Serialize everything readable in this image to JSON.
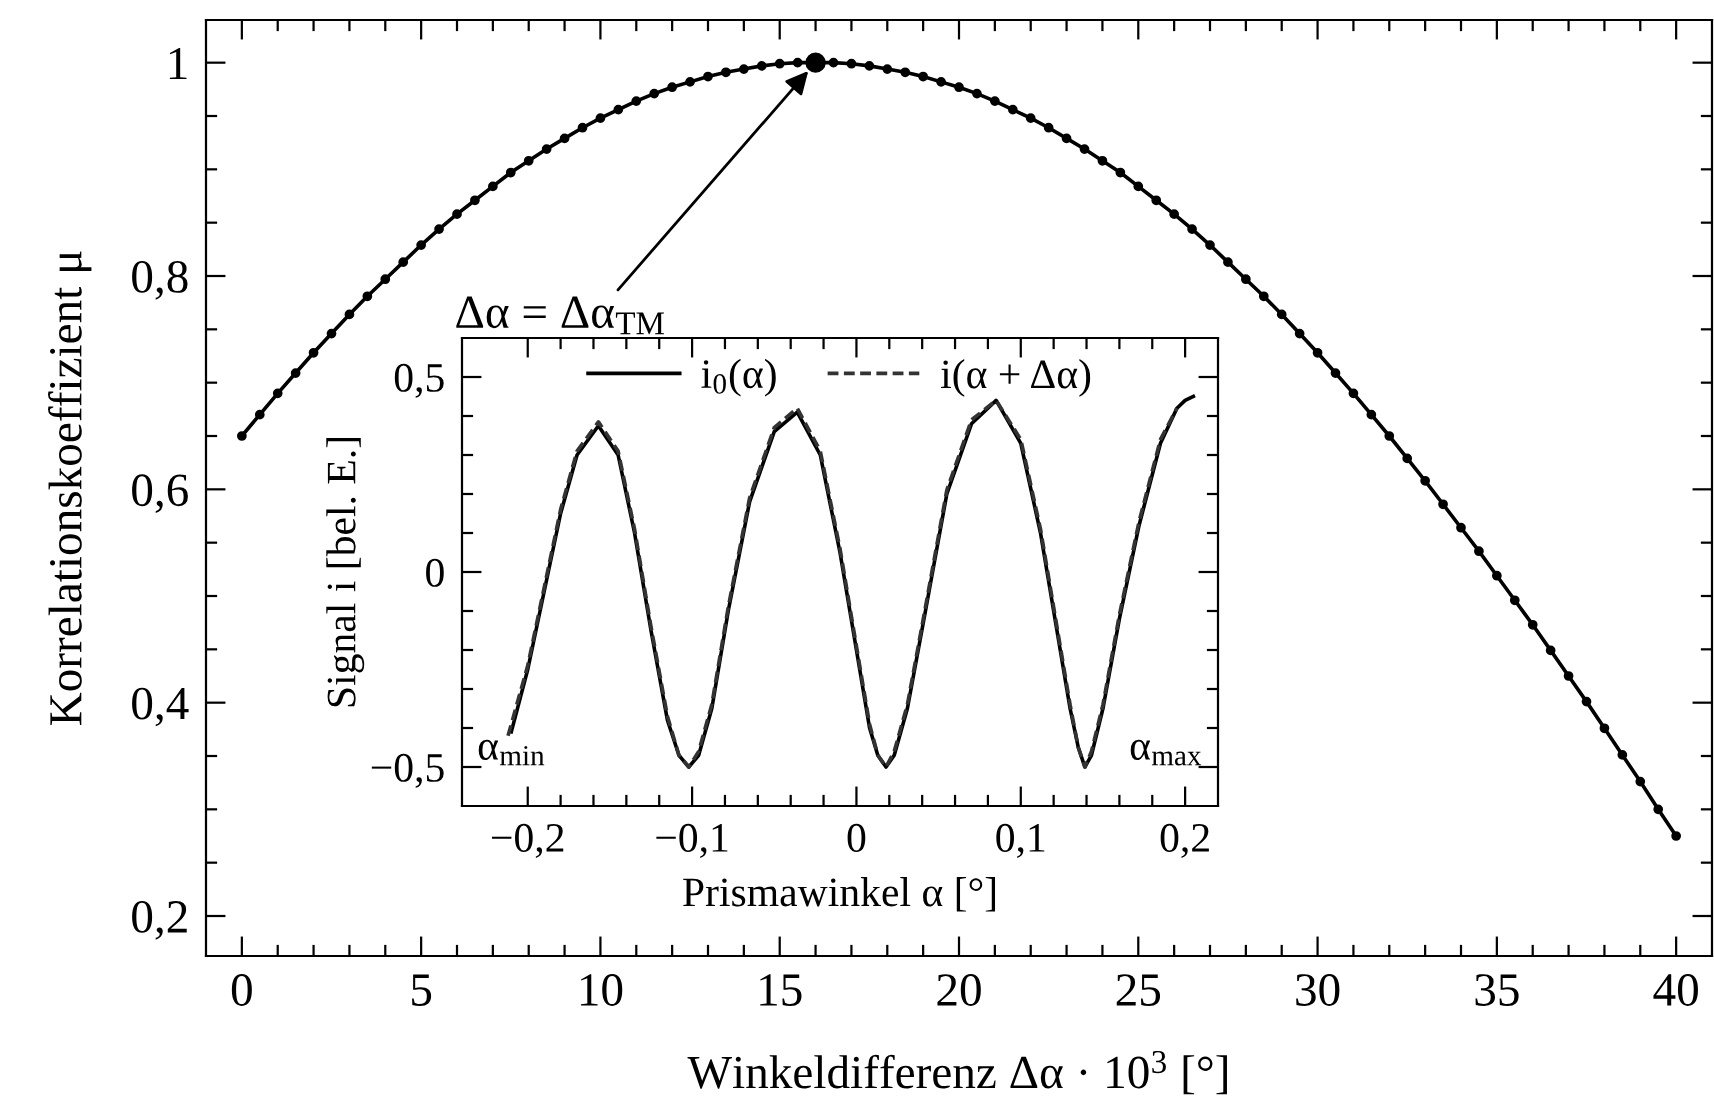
{
  "chart_data": [
    {
      "type": "line",
      "xlabel": "Winkeldifferenz Δα · 10$^{3}$ [°]",
      "ylabel": "Korrelationskoeffizient μ",
      "x": [
        0,
        0.5,
        1,
        1.5,
        2,
        2.5,
        3,
        3.5,
        4,
        4.5,
        5,
        5.5,
        6,
        6.5,
        7,
        7.5,
        8,
        8.5,
        9,
        9.5,
        10,
        10.5,
        11,
        11.5,
        12,
        12.5,
        13,
        13.5,
        14,
        14.5,
        15,
        15.5,
        16,
        16.5,
        17,
        17.5,
        18,
        18.5,
        19,
        19.5,
        20,
        20.5,
        21,
        21.5,
        22,
        22.5,
        23,
        23.5,
        24,
        24.5,
        25,
        25.5,
        26,
        26.5,
        27,
        27.5,
        28,
        28.5,
        29,
        29.5,
        30,
        30.5,
        31,
        31.5,
        32,
        32.5,
        33,
        33.5,
        34,
        34.5,
        35,
        35.5,
        36,
        36.5,
        37,
        37.5,
        38,
        38.5,
        39,
        39.5,
        40
      ],
      "series": [
        {
          "type": "line",
          "color": "#000000",
          "marker": "circle",
          "values": [
            0.65,
            0.67,
            0.69,
            0.709,
            0.728,
            0.746,
            0.764,
            0.781,
            0.797,
            0.813,
            0.829,
            0.844,
            0.858,
            0.871,
            0.884,
            0.897,
            0.908,
            0.919,
            0.929,
            0.939,
            0.948,
            0.956,
            0.964,
            0.971,
            0.977,
            0.982,
            0.987,
            0.991,
            0.994,
            0.997,
            0.999,
            1.0,
            1.0,
            1.0,
            0.999,
            0.997,
            0.994,
            0.991,
            0.987,
            0.982,
            0.977,
            0.971,
            0.964,
            0.956,
            0.948,
            0.939,
            0.929,
            0.919,
            0.908,
            0.897,
            0.884,
            0.871,
            0.858,
            0.844,
            0.829,
            0.813,
            0.797,
            0.781,
            0.764,
            0.746,
            0.728,
            0.709,
            0.69,
            0.67,
            0.65,
            0.629,
            0.608,
            0.586,
            0.564,
            0.542,
            0.519,
            0.496,
            0.473,
            0.449,
            0.425,
            0.401,
            0.376,
            0.351,
            0.326,
            0.3,
            0.275
          ]
        },
        {
          "type": "scatter",
          "color": "#000000",
          "marker": "circle",
          "x": [
            16
          ],
          "values": [
            1.0
          ]
        }
      ],
      "xlim": [
        -1,
        41
      ],
      "ylim": [
        0.1625,
        1.04
      ],
      "xticks": [
        0,
        {
          "value": 1,
          "label": null
        },
        {
          "value": 2,
          "label": null
        },
        {
          "value": 3,
          "label": null
        },
        {
          "value": 4,
          "label": null
        },
        5,
        {
          "value": 6,
          "label": null
        },
        {
          "value": 7,
          "label": null
        },
        {
          "value": 8,
          "label": null
        },
        {
          "value": 9,
          "label": null
        },
        10,
        {
          "value": 11,
          "label": null
        },
        {
          "value": 12,
          "label": null
        },
        {
          "value": 13,
          "label": null
        },
        {
          "value": 14,
          "label": null
        },
        15,
        {
          "value": 16,
          "label": null
        },
        {
          "value": 17,
          "label": null
        },
        {
          "value": 18,
          "label": null
        },
        {
          "value": 19,
          "label": null
        },
        20,
        {
          "value": 21,
          "label": null
        },
        {
          "value": 22,
          "label": null
        },
        {
          "value": 23,
          "label": null
        },
        {
          "value": 24,
          "label": null
        },
        25,
        {
          "value": 26,
          "label": null
        },
        {
          "value": 27,
          "label": null
        },
        {
          "value": 28,
          "label": null
        },
        {
          "value": 29,
          "label": null
        },
        30,
        {
          "value": 31,
          "label": null
        },
        {
          "value": 32,
          "label": null
        },
        {
          "value": 33,
          "label": null
        },
        {
          "value": 34,
          "label": null
        },
        35,
        {
          "value": 36,
          "label": null
        },
        {
          "value": 37,
          "label": null
        },
        {
          "value": 38,
          "label": null
        },
        {
          "value": 39,
          "label": null
        },
        40
      ],
      "yticks": [
        {
          "value": 0.2,
          "label": "0,2"
        },
        {
          "value": 0.25,
          "label": null
        },
        {
          "value": 0.3,
          "label": null
        },
        {
          "value": 0.35,
          "label": null
        },
        {
          "value": 0.4,
          "label": "0,4"
        },
        {
          "value": 0.45,
          "label": null
        },
        {
          "value": 0.5,
          "label": null
        },
        {
          "value": 0.55,
          "label": null
        },
        {
          "value": 0.6,
          "label": "0,6"
        },
        {
          "value": 0.65,
          "label": null
        },
        {
          "value": 0.7,
          "label": null
        },
        {
          "value": 0.75,
          "label": null
        },
        {
          "value": 0.8,
          "label": "0,8"
        },
        {
          "value": 0.85,
          "label": null
        },
        {
          "value": 0.9,
          "label": null
        },
        {
          "value": 0.95,
          "label": null
        },
        1
      ],
      "annotations": [
        {
          "text": "Δα = Δα$_{TM}$",
          "x": 16,
          "y": 1.0
        }
      ]
    },
    {
      "type": "line",
      "xlabel": "Prismawinkel α [°]",
      "ylabel": "Signal i [bel. E.]",
      "legend": "top",
      "series": [
        {
          "name": "i$_{0}$(α)",
          "color": "#000000",
          "line_style": "solid",
          "x": [
            -0.21,
            -0.2,
            -0.19,
            -0.18,
            -0.17,
            -0.157,
            -0.145,
            -0.135,
            -0.125,
            -0.115,
            -0.108,
            -0.102,
            -0.096,
            -0.088,
            -0.078,
            -0.065,
            -0.05,
            -0.036,
            -0.022,
            -0.01,
            0.0,
            0.008,
            0.013,
            0.018,
            0.023,
            0.031,
            0.042,
            0.055,
            0.07,
            0.085,
            0.1,
            0.112,
            0.122,
            0.13,
            0.135,
            0.139,
            0.143,
            0.15,
            0.16,
            0.172,
            0.185,
            0.195,
            0.2,
            0.205
          ],
          "values": [
            -0.41,
            -0.25,
            -0.05,
            0.15,
            0.3,
            0.375,
            0.3,
            0.1,
            -0.15,
            -0.38,
            -0.47,
            -0.5,
            -0.47,
            -0.35,
            -0.1,
            0.18,
            0.36,
            0.41,
            0.3,
            0.05,
            -0.2,
            -0.4,
            -0.47,
            -0.5,
            -0.47,
            -0.35,
            -0.1,
            0.2,
            0.38,
            0.44,
            0.33,
            0.1,
            -0.15,
            -0.35,
            -0.45,
            -0.5,
            -0.47,
            -0.35,
            -0.12,
            0.12,
            0.33,
            0.42,
            0.44,
            0.45
          ]
        },
        {
          "name": "i(α + Δα)",
          "color": "#333333",
          "line_style": "dashed",
          "x": [
            -0.212,
            -0.2,
            -0.19,
            -0.18,
            -0.17,
            -0.157,
            -0.145,
            -0.135,
            -0.125,
            -0.115,
            -0.108,
            -0.102,
            -0.096,
            -0.088,
            -0.078,
            -0.065,
            -0.05,
            -0.036,
            -0.022,
            -0.01,
            0.0,
            0.008,
            0.013,
            0.018,
            0.023,
            0.031,
            0.042,
            0.055,
            0.07,
            0.085,
            0.1,
            0.112,
            0.122,
            0.13,
            0.135,
            0.139,
            0.143,
            0.15,
            0.16,
            0.172,
            0.185,
            0.195
          ],
          "values": [
            -0.42,
            -0.24,
            -0.04,
            0.16,
            0.31,
            0.385,
            0.31,
            0.11,
            -0.14,
            -0.37,
            -0.47,
            -0.5,
            -0.46,
            -0.34,
            -0.09,
            0.19,
            0.37,
            0.42,
            0.31,
            0.06,
            -0.19,
            -0.39,
            -0.47,
            -0.5,
            -0.46,
            -0.34,
            -0.09,
            0.21,
            0.39,
            0.44,
            0.34,
            0.11,
            -0.14,
            -0.34,
            -0.45,
            -0.5,
            -0.46,
            -0.34,
            -0.11,
            0.13,
            0.34,
            0.42
          ]
        }
      ],
      "xlim": [
        -0.24,
        0.22
      ],
      "ylim": [
        -0.6,
        0.6
      ],
      "xticks": [
        {
          "value": -0.2,
          "label": "−0,2"
        },
        {
          "value": -0.18,
          "label": null
        },
        {
          "value": -0.16,
          "label": null
        },
        {
          "value": -0.14,
          "label": null
        },
        {
          "value": -0.12,
          "label": null
        },
        {
          "value": -0.1,
          "label": "−0,1"
        },
        {
          "value": -0.08,
          "label": null
        },
        {
          "value": -0.06,
          "label": null
        },
        {
          "value": -0.04,
          "label": null
        },
        {
          "value": -0.02,
          "label": null
        },
        0,
        {
          "value": 0.02,
          "label": null
        },
        {
          "value": 0.04,
          "label": null
        },
        {
          "value": 0.06,
          "label": null
        },
        {
          "value": 0.08,
          "label": null
        },
        {
          "value": 0.1,
          "label": "0,1"
        },
        {
          "value": 0.12,
          "label": null
        },
        {
          "value": 0.14,
          "label": null
        },
        {
          "value": 0.16,
          "label": null
        },
        {
          "value": 0.18,
          "label": null
        },
        {
          "value": 0.2,
          "label": "0,2"
        }
      ],
      "yticks": [
        {
          "value": -0.5,
          "label": "−0,5"
        },
        {
          "value": -0.4,
          "label": null
        },
        {
          "value": -0.3,
          "label": null
        },
        {
          "value": -0.2,
          "label": null
        },
        {
          "value": -0.1,
          "label": null
        },
        0,
        {
          "value": 0.1,
          "label": null
        },
        {
          "value": 0.2,
          "label": null
        },
        {
          "value": 0.3,
          "label": null
        },
        {
          "value": 0.4,
          "label": null
        },
        {
          "value": 0.5,
          "label": "0,5"
        }
      ],
      "annotations": [
        "α$_{min}$",
        "α$_{max}$"
      ]
    }
  ]
}
